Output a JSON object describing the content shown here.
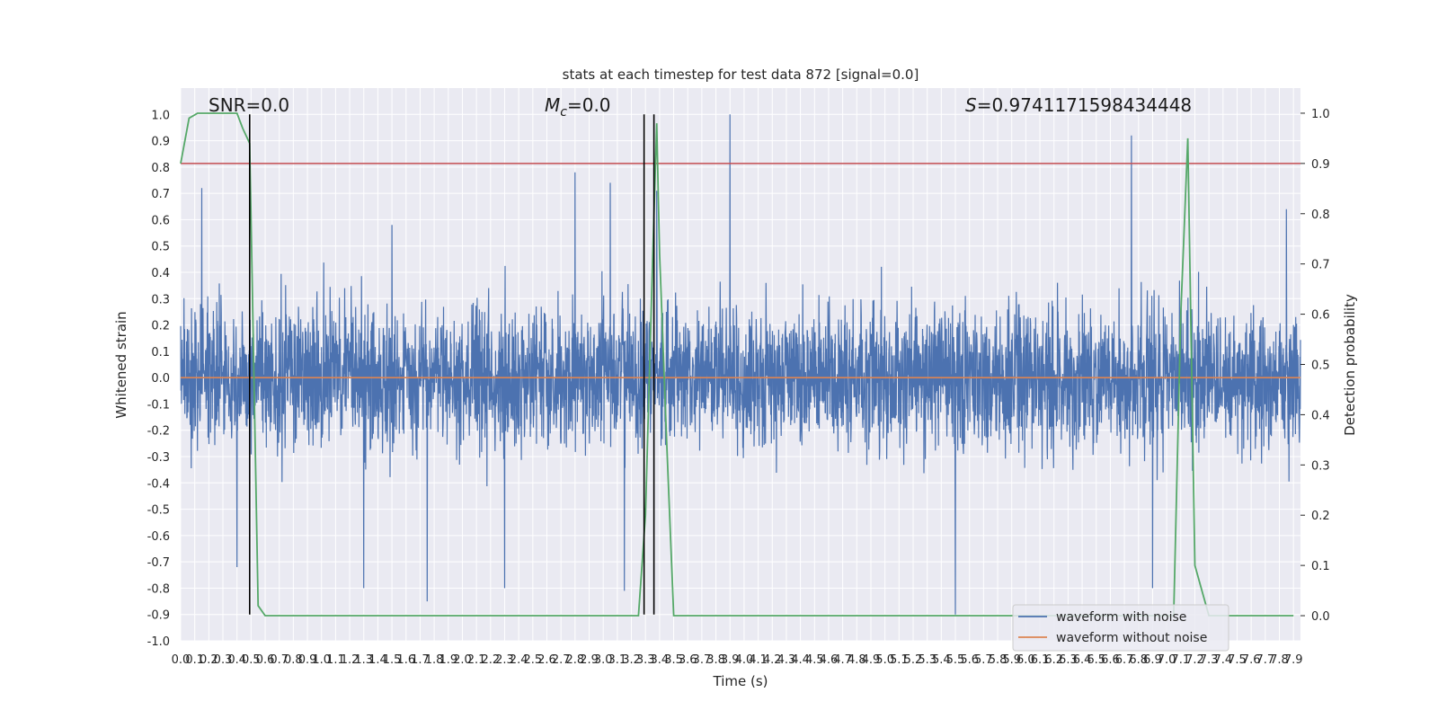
{
  "chart_data": {
    "type": "line",
    "title": "stats at each timestep for test data 872 [signal=0.0]",
    "xlabel": "Time (s)",
    "ylabel": "Whitened strain",
    "y2label": "Detection probability",
    "xlim": [
      0.0,
      7.95
    ],
    "ylim": [
      -1.0,
      1.1
    ],
    "y2lim": [
      -0.05,
      1.05
    ],
    "x_ticks": [
      "0.0",
      "0.1",
      "0.2",
      "0.3",
      "0.4",
      "0.5",
      "0.6",
      "0.7",
      "0.8",
      "0.9",
      "1.0",
      "1.1",
      "1.2",
      "1.3",
      "1.4",
      "1.5",
      "1.6",
      "1.7",
      "1.8",
      "1.9",
      "2.0",
      "2.1",
      "2.2",
      "2.3",
      "2.4",
      "2.5",
      "2.6",
      "2.7",
      "2.8",
      "2.9",
      "3.0",
      "3.1",
      "3.2",
      "3.3",
      "3.4",
      "3.5",
      "3.6",
      "3.7",
      "3.8",
      "3.9",
      "4.0",
      "4.1",
      "4.2",
      "4.3",
      "4.4",
      "4.5",
      "4.6",
      "4.7",
      "4.8",
      "4.9",
      "5.0",
      "5.1",
      "5.2",
      "5.3",
      "5.4",
      "5.5",
      "5.6",
      "5.7",
      "5.8",
      "5.9",
      "6.0",
      "6.1",
      "6.2",
      "6.3",
      "6.4",
      "6.5",
      "6.6",
      "6.7",
      "6.8",
      "6.9",
      "7.0",
      "7.1",
      "7.2",
      "7.3",
      "7.4",
      "7.5",
      "7.6",
      "7.7",
      "7.8",
      "7.9"
    ],
    "y_ticks": [
      "-1.0",
      "-0.9",
      "-0.8",
      "-0.7",
      "-0.6",
      "-0.5",
      "-0.4",
      "-0.3",
      "-0.2",
      "-0.1",
      "0.0",
      "0.1",
      "0.2",
      "0.3",
      "0.4",
      "0.5",
      "0.6",
      "0.7",
      "0.8",
      "0.9",
      "1.0"
    ],
    "y2_ticks": [
      "0.0",
      "0.1",
      "0.2",
      "0.3",
      "0.4",
      "0.5",
      "0.6",
      "0.7",
      "0.8",
      "0.9",
      "1.0"
    ],
    "grid": true,
    "legend_position": "bottom-right",
    "annotations": {
      "snr": "SNR=0.0",
      "mc_symbol": "M",
      "mc_sub": "c",
      "mc_value": "=0.0",
      "s_symbol": "S",
      "s_value": "=0.9741171598434448"
    },
    "series": [
      {
        "name": "waveform with noise",
        "color": "#4c72b0",
        "description_type": "noise",
        "amplitude_typical": 0.3,
        "peaks": [
          {
            "x": 0.15,
            "y": 0.72
          },
          {
            "x": 1.5,
            "y": 0.58
          },
          {
            "x": 2.8,
            "y": 0.78
          },
          {
            "x": 3.05,
            "y": 0.74
          },
          {
            "x": 3.15,
            "y": 0.85
          },
          {
            "x": 3.38,
            "y": 0.71
          },
          {
            "x": 3.9,
            "y": 1.0
          },
          {
            "x": 6.75,
            "y": 0.92
          },
          {
            "x": 7.85,
            "y": 0.64
          },
          {
            "x": 1.75,
            "y": -0.85
          },
          {
            "x": 1.3,
            "y": -0.8
          },
          {
            "x": 2.3,
            "y": -0.8
          },
          {
            "x": 3.15,
            "y": -0.81
          },
          {
            "x": 5.5,
            "y": -0.9
          },
          {
            "x": 0.4,
            "y": -0.72
          },
          {
            "x": 6.9,
            "y": -0.8
          }
        ]
      },
      {
        "name": "waveform without noise",
        "color": "#dd8452",
        "x": [
          0.0,
          7.95
        ],
        "y": [
          0.0,
          0.0
        ]
      },
      {
        "name": "",
        "axis": "y2",
        "color": "#55a868",
        "x": [
          0.0,
          0.06,
          0.12,
          0.2,
          0.3,
          0.4,
          0.44,
          0.49,
          0.55,
          0.6,
          0.65,
          1.0,
          2.0,
          3.0,
          3.2,
          3.25,
          3.3,
          3.35,
          3.38,
          3.4,
          3.45,
          3.5,
          3.6,
          4.0,
          5.0,
          6.0,
          7.0,
          7.05,
          7.1,
          7.15,
          7.2,
          7.25,
          7.3,
          7.9
        ],
        "y": [
          0.9,
          0.99,
          1.0,
          1.0,
          1.0,
          1.0,
          0.97,
          0.94,
          0.02,
          0.0,
          0.0,
          0.0,
          0.0,
          0.0,
          0.0,
          0.0,
          0.2,
          0.7,
          0.98,
          0.72,
          0.35,
          0.0,
          0.0,
          0.0,
          0.0,
          0.0,
          0.0,
          0.0,
          0.6,
          0.95,
          0.1,
          0.05,
          0.0,
          0.0
        ]
      }
    ],
    "threshold_line": {
      "axis": "y2",
      "value": 0.9,
      "color": "#c44e52"
    },
    "vertical_lines": [
      {
        "x": 0.49,
        "y_top": 1.0,
        "y_bottom": -0.9,
        "color": "#000000"
      },
      {
        "x": 3.29,
        "y_top": 1.0,
        "y_bottom": -0.9,
        "color": "#000000"
      },
      {
        "x": 3.36,
        "y_top": 1.0,
        "y_bottom": -0.9,
        "color": "#000000"
      }
    ]
  }
}
